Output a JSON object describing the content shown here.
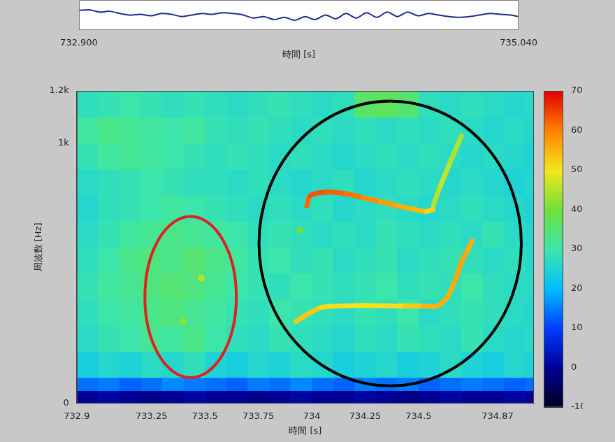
{
  "chart_data": [
    {
      "type": "line",
      "x_label": "時間 [s]",
      "xlim": [
        732.9,
        735.04
      ],
      "xticks": [
        {
          "value": 732.9,
          "label": "732.900"
        },
        {
          "value": 735.04,
          "label": "735.040"
        }
      ],
      "ylim": [
        -1,
        1
      ],
      "tick_labels": "x",
      "color": "#1c2f8c",
      "x": [
        732.9,
        732.95,
        733.0,
        733.05,
        733.1,
        733.15,
        733.2,
        733.25,
        733.3,
        733.35,
        733.4,
        733.45,
        733.5,
        733.55,
        733.6,
        733.65,
        733.7,
        733.75,
        733.8,
        733.85,
        733.9,
        733.95,
        734.0,
        734.05,
        734.1,
        734.15,
        734.2,
        734.25,
        734.3,
        734.35,
        734.4,
        734.45,
        734.5,
        734.55,
        734.6,
        734.65,
        734.7,
        734.75,
        734.8,
        734.85,
        734.9,
        734.95,
        735.0,
        735.04
      ],
      "values": [
        0.3,
        0.35,
        0.2,
        0.25,
        0.1,
        0.0,
        0.05,
        -0.05,
        0.1,
        0.05,
        -0.1,
        0.0,
        0.1,
        0.05,
        0.15,
        0.1,
        0.0,
        -0.2,
        -0.1,
        -0.3,
        -0.15,
        -0.35,
        -0.1,
        -0.3,
        0.0,
        -0.25,
        0.1,
        -0.2,
        0.15,
        -0.15,
        0.2,
        -0.1,
        0.2,
        -0.05,
        0.1,
        0.0,
        -0.1,
        -0.15,
        -0.1,
        0.0,
        0.1,
        0.05,
        0.0,
        -0.1
      ]
    },
    {
      "type": "heatmap",
      "x_label": "時間 [s]",
      "y_label": "周波数 [Hz]",
      "xlim": [
        732.9,
        735.04
      ],
      "xticks": [
        732.9,
        733.25,
        733.5,
        733.75,
        734,
        734.25,
        734.5,
        734.87
      ],
      "ylim": [
        0,
        1200
      ],
      "yticks": [
        0,
        {
          "value": 1000,
          "label": "1k"
        },
        {
          "value": 1200,
          "label": "1.2k"
        }
      ],
      "grid": false,
      "x_edges": [
        732.9,
        733.0,
        733.1,
        733.2,
        733.3,
        733.4,
        733.5,
        733.6,
        733.7,
        733.8,
        733.9,
        734.0,
        734.1,
        734.2,
        734.3,
        734.4,
        734.5,
        734.6,
        734.7,
        734.8,
        734.9,
        735.0,
        735.04
      ],
      "y_edges": [
        0,
        50,
        100,
        200,
        300,
        400,
        500,
        600,
        700,
        800,
        900,
        1000,
        1100,
        1200
      ],
      "cells": [
        [
          0,
          1,
          0,
          -1,
          0,
          1,
          0,
          0,
          -1,
          0,
          1,
          0,
          0,
          1,
          0,
          -1,
          0,
          1,
          0,
          0,
          1,
          0
        ],
        [
          14,
          15,
          13,
          14,
          16,
          15,
          14,
          13,
          15,
          14,
          16,
          14,
          13,
          15,
          14,
          15,
          13,
          14,
          15,
          14,
          13,
          14
        ],
        [
          24,
          26,
          25,
          27,
          26,
          28,
          25,
          24,
          26,
          25,
          27,
          26,
          24,
          25,
          26,
          24,
          25,
          27,
          25,
          24,
          26,
          25
        ],
        [
          27,
          29,
          30,
          32,
          31,
          33,
          30,
          28,
          27,
          29,
          28,
          27,
          26,
          28,
          27,
          29,
          28,
          27,
          29,
          27,
          26,
          27
        ],
        [
          28,
          30,
          31,
          33,
          34,
          32,
          31,
          29,
          28,
          30,
          29,
          28,
          27,
          29,
          28,
          30,
          27,
          28,
          29,
          28,
          27,
          26
        ],
        [
          29,
          31,
          32,
          34,
          35,
          34,
          32,
          30,
          29,
          28,
          30,
          29,
          28,
          29,
          30,
          28,
          29,
          28,
          30,
          28,
          27,
          27
        ],
        [
          28,
          30,
          33,
          34,
          33,
          35,
          33,
          31,
          29,
          30,
          28,
          29,
          27,
          28,
          29,
          27,
          28,
          29,
          28,
          27,
          28,
          26
        ],
        [
          27,
          29,
          31,
          32,
          33,
          32,
          31,
          30,
          28,
          29,
          28,
          27,
          28,
          27,
          29,
          28,
          27,
          28,
          27,
          29,
          27,
          26
        ],
        [
          26,
          28,
          29,
          30,
          31,
          30,
          29,
          28,
          27,
          28,
          27,
          28,
          26,
          27,
          28,
          27,
          26,
          27,
          28,
          27,
          26,
          25
        ],
        [
          27,
          28,
          29,
          30,
          29,
          28,
          28,
          27,
          28,
          27,
          26,
          27,
          28,
          26,
          27,
          28,
          27,
          26,
          27,
          26,
          25,
          26
        ],
        [
          29,
          31,
          32,
          31,
          30,
          29,
          28,
          29,
          28,
          27,
          28,
          27,
          26,
          27,
          28,
          27,
          28,
          27,
          26,
          27,
          26,
          25
        ],
        [
          31,
          33,
          32,
          31,
          30,
          31,
          29,
          28,
          29,
          28,
          27,
          28,
          27,
          28,
          27,
          28,
          27,
          28,
          27,
          26,
          27,
          26
        ],
        [
          28,
          29,
          30,
          29,
          28,
          29,
          28,
          27,
          28,
          29,
          28,
          27,
          28,
          36,
          37,
          35,
          28,
          27,
          28,
          27,
          26,
          27
        ]
      ],
      "colorbar": {
        "range": [
          -10,
          70
        ],
        "ticks": [
          -10,
          0,
          10,
          20,
          30,
          40,
          50,
          60,
          70
        ]
      },
      "tracks": [
        {
          "x": [
            733.977,
            733.993,
            734.075,
            734.16,
            734.24,
            734.32,
            734.405,
            734.48,
            734.537,
            734.569
          ],
          "y": [
            758,
            798,
            812,
            805,
            790,
            775,
            758,
            745,
            737,
            745
          ],
          "levels": [
            60,
            64,
            63,
            62,
            60,
            58,
            56,
            55,
            54,
            50
          ]
        },
        {
          "x": [
            734.569,
            734.6,
            734.65,
            734.701
          ],
          "y": [
            760,
            830,
            930,
            1027
          ],
          "levels": [
            44,
            46,
            46,
            43
          ]
        },
        {
          "x": [
            733.927,
            733.977,
            734.043,
            734.14,
            734.24,
            734.34,
            734.438,
            734.52,
            734.586,
            734.635,
            734.67,
            734.701,
            734.73,
            734.751
          ],
          "y": [
            315,
            341,
            368,
            374,
            376,
            375,
            374,
            374,
            374,
            409,
            470,
            543,
            590,
            624
          ],
          "levels": [
            52,
            54,
            52,
            50,
            51,
            50,
            52,
            54,
            56,
            55,
            56,
            57,
            56,
            55
          ]
        }
      ],
      "spots": [
        {
          "x": 733.944,
          "y": 664,
          "level": 40
        },
        {
          "x": 733.483,
          "y": 481,
          "level": 45
        },
        {
          "x": 733.4,
          "y": 315,
          "level": 42
        }
      ],
      "ellipses": [
        {
          "color": "#e02020",
          "x_range": [
            733.219,
            733.647
          ],
          "y_range": [
            99,
            718
          ]
        },
        {
          "color": "#000000",
          "x_range": [
            733.753,
            734.981
          ],
          "y_range": [
            67,
            1161
          ]
        }
      ]
    }
  ]
}
